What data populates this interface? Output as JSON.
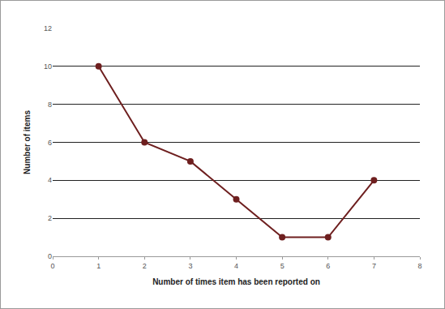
{
  "chart_data": {
    "type": "line",
    "xlabel": "Number of times item has been reported on",
    "ylabel": "Number of items",
    "x": [
      1,
      2,
      3,
      4,
      5,
      6,
      7
    ],
    "values": [
      10,
      6,
      5,
      3,
      1,
      1,
      4
    ],
    "color": "#6e1f1f",
    "marker": "circle",
    "xlim": [
      0,
      8
    ],
    "xticks": [
      0,
      1,
      2,
      3,
      4,
      5,
      6,
      7,
      8
    ],
    "ylim": [
      0,
      12
    ],
    "yticks": [
      0,
      2,
      4,
      6,
      8,
      10,
      12
    ],
    "grid": true
  }
}
